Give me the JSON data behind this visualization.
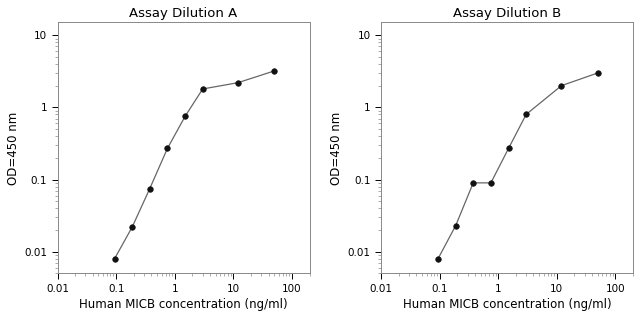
{
  "title_A": "Assay Dilution A",
  "title_B": "Assay Dilution B",
  "xlabel": "Human MICB concentration (ng/ml)",
  "ylabel": "OD=450 nm",
  "x_A": [
    0.094,
    0.188,
    0.375,
    0.75,
    1.5,
    3.0,
    12.0,
    50.0
  ],
  "y_A": [
    0.008,
    0.022,
    0.075,
    0.27,
    0.75,
    1.8,
    2.2,
    3.2
  ],
  "x_B": [
    0.094,
    0.188,
    0.375,
    0.75,
    1.5,
    3.0,
    12.0,
    50.0
  ],
  "y_B": [
    0.008,
    0.023,
    0.09,
    0.09,
    0.27,
    0.8,
    2.0,
    3.0
  ],
  "xlim": [
    0.01,
    200
  ],
  "ylim": [
    0.005,
    15
  ],
  "xticks": [
    0.01,
    0.1,
    1,
    10,
    100
  ],
  "yticks": [
    0.01,
    0.1,
    1,
    10
  ],
  "xtick_labels": [
    "0.01",
    "0.1",
    "1",
    "10",
    "100"
  ],
  "ytick_labels": [
    "0.01",
    "0.1",
    "1",
    "10"
  ],
  "line_color": "#666666",
  "marker_color": "#111111",
  "bg_color": "#ffffff",
  "title_fontsize": 9.5,
  "label_fontsize": 8.5,
  "tick_fontsize": 7.5
}
